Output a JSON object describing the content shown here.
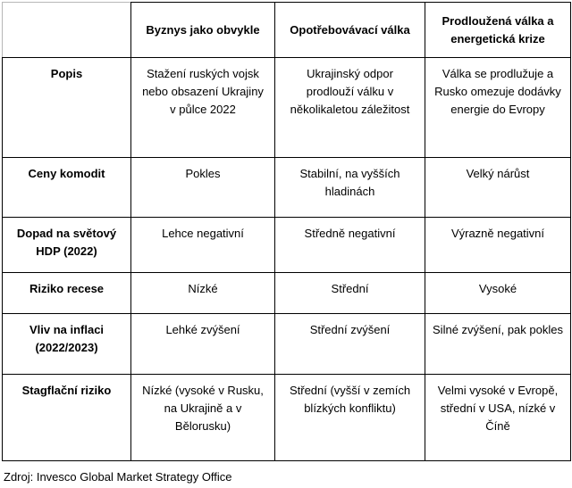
{
  "table": {
    "corner": "",
    "headers": [
      "Byznys jako obvykle",
      "Opotřebovávací válka",
      "Prodloužená válka a energetická krize"
    ],
    "rows": [
      {
        "label": "Popis",
        "cells": [
          "Stažení ruských vojsk nebo obsazení Ukrajiny v půlce 2022",
          "Ukrajinský odpor prodlouží válku v několikaletou záležitost",
          "Válka se prodlužuje a Rusko omezuje dodávky energie do Evropy"
        ]
      },
      {
        "label": "Ceny komodit",
        "cells": [
          "Pokles",
          "Stabilní, na vyšších hladinách",
          "Velký nárůst"
        ]
      },
      {
        "label": "Dopad na světový HDP (2022)",
        "cells": [
          "Lehce negativní",
          "Středně negativní",
          "Výrazně negativní"
        ]
      },
      {
        "label": "Riziko recese",
        "cells": [
          "Nízké",
          "Střední",
          "Vysoké"
        ]
      },
      {
        "label": "Vliv na inflaci (2022/2023)",
        "cells": [
          "Lehké zvýšení",
          "Střední zvýšení",
          "Silné zvýšení, pak pokles"
        ]
      },
      {
        "label": "Stagflační riziko",
        "cells": [
          "Nízké (vysoké v Rusku, na Ukrajině a v Bělorusku)",
          "Střední (vyšší v zemích blízkých konfliktu)",
          "Velmi vysoké v Evropě, střední v USA, nízké v Číně"
        ]
      }
    ]
  },
  "source": "Zdroj: Invesco Global Market Strategy Office",
  "chart_data": {
    "type": "table",
    "columns": [
      "",
      "Byznys jako obvykle",
      "Opotřebovávací válka",
      "Prodloužená válka a energetická krize"
    ],
    "rows": [
      [
        "Popis",
        "Stažení ruských vojsk nebo obsazení Ukrajiny v půlce 2022",
        "Ukrajinský odpor prodlouží válku v několikaletou záležitost",
        "Válka se prodlužuje a Rusko omezuje dodávky energie do Evropy"
      ],
      [
        "Ceny komodit",
        "Pokles",
        "Stabilní, na vyšších hladinách",
        "Velký nárůst"
      ],
      [
        "Dopad na světový HDP (2022)",
        "Lehce negativní",
        "Středně negativní",
        "Výrazně negativní"
      ],
      [
        "Riziko recese",
        "Nízké",
        "Střední",
        "Vysoké"
      ],
      [
        "Vliv na inflaci (2022/2023)",
        "Lehké zvýšení",
        "Střední zvýšení",
        "Silné zvýšení, pak pokles"
      ],
      [
        "Stagflační riziko",
        "Nízké (vysoké v Rusku, na Ukrajině a v Bělorusku)",
        "Střední (vyšší v zemích blízkých konfliktu)",
        "Velmi vysoké v Evropě, střední v USA, nízké v Číně"
      ]
    ],
    "source": "Zdroj: Invesco Global Market Strategy Office"
  }
}
